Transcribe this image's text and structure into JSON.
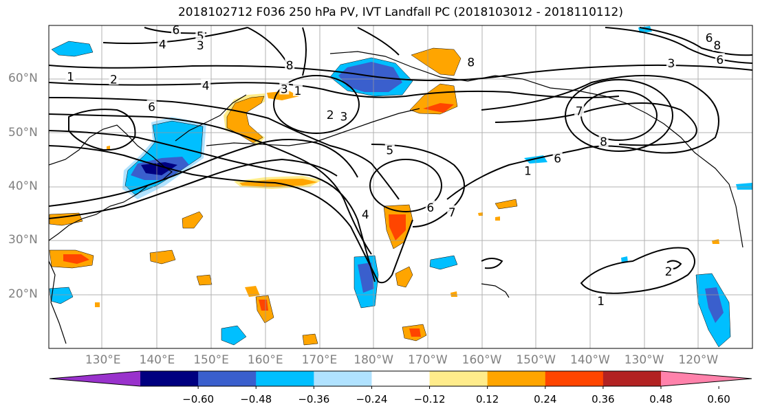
{
  "figure": {
    "title": "2018102712 F036 250 hPa PV, IVT Landfall PC (2018103012 - 2018110112)"
  },
  "map": {
    "projection": "cylindrical",
    "lon_range_east": [
      120,
      250
    ],
    "lat_range": [
      10,
      70
    ],
    "lat_ticks": [
      {
        "lat": 60,
        "label": "60°N"
      },
      {
        "lat": 50,
        "label": "50°N"
      },
      {
        "lat": 40,
        "label": "40°N"
      },
      {
        "lat": 30,
        "label": "30°N"
      },
      {
        "lat": 20,
        "label": "20°N"
      }
    ],
    "lon_ticks": [
      {
        "lon": 130,
        "label": "130°E"
      },
      {
        "lon": 140,
        "label": "140°E"
      },
      {
        "lon": 150,
        "label": "150°E"
      },
      {
        "lon": 160,
        "label": "160°E"
      },
      {
        "lon": 170,
        "label": "170°E"
      },
      {
        "lon": 180,
        "label": "180°W"
      },
      {
        "lon": 190,
        "label": "170°W"
      },
      {
        "lon": 200,
        "label": "160°W"
      },
      {
        "lon": 210,
        "label": "150°W"
      },
      {
        "lon": 220,
        "label": "140°W"
      },
      {
        "lon": 230,
        "label": "130°W"
      },
      {
        "lon": 240,
        "label": "120°W"
      }
    ],
    "gridlines": true,
    "contour_labels": [
      {
        "text": "1",
        "lon": 124,
        "lat": 60.5
      },
      {
        "text": "2",
        "lon": 132,
        "lat": 60
      },
      {
        "text": "4",
        "lon": 141,
        "lat": 66.5
      },
      {
        "text": "5",
        "lon": 148,
        "lat": 68
      },
      {
        "text": "6",
        "lon": 143.5,
        "lat": 69.2
      },
      {
        "text": "3",
        "lon": 148,
        "lat": 66.3
      },
      {
        "text": "4",
        "lon": 149,
        "lat": 58.8
      },
      {
        "text": "6",
        "lon": 139,
        "lat": 54.9
      },
      {
        "text": "8",
        "lon": 164.5,
        "lat": 62.6
      },
      {
        "text": "3",
        "lon": 163.5,
        "lat": 58.2
      },
      {
        "text": "1",
        "lon": 166,
        "lat": 57.9
      },
      {
        "text": "2",
        "lon": 172,
        "lat": 53.4
      },
      {
        "text": "3",
        "lon": 174.5,
        "lat": 53.1
      },
      {
        "text": "5",
        "lon": 183,
        "lat": 46.8
      },
      {
        "text": "6",
        "lon": 190.5,
        "lat": 36.2
      },
      {
        "text": "7",
        "lon": 194.5,
        "lat": 35.3
      },
      {
        "text": "4",
        "lon": 178.5,
        "lat": 34.9
      },
      {
        "text": "8",
        "lon": 198,
        "lat": 63.2
      },
      {
        "text": "8",
        "lon": 243.5,
        "lat": 66.3
      },
      {
        "text": "6",
        "lon": 242,
        "lat": 67.7
      },
      {
        "text": "3",
        "lon": 235,
        "lat": 63
      },
      {
        "text": "6",
        "lon": 244,
        "lat": 63.6
      },
      {
        "text": "7",
        "lon": 218,
        "lat": 54.1
      },
      {
        "text": "8",
        "lon": 222.5,
        "lat": 48.4
      },
      {
        "text": "6",
        "lon": 214,
        "lat": 45.3
      },
      {
        "text": "1",
        "lon": 208.5,
        "lat": 43
      },
      {
        "text": "1",
        "lon": 222,
        "lat": 18.8
      },
      {
        "text": "2",
        "lon": 234.5,
        "lat": 24.3
      }
    ]
  },
  "colorbar": {
    "colors": [
      "#9932cc",
      "#000080",
      "#3a5fcd",
      "#00bfff",
      "#b0e2ff",
      "#ffffff",
      "#ffec8b",
      "#ffa500",
      "#ff4500",
      "#b22222",
      "#ff82ab"
    ],
    "tick_labels": [
      "−0.60",
      "−0.48",
      "−0.36",
      "−0.24",
      "−0.12",
      "0.12",
      "0.24",
      "0.36",
      "0.48",
      "0.60"
    ]
  }
}
